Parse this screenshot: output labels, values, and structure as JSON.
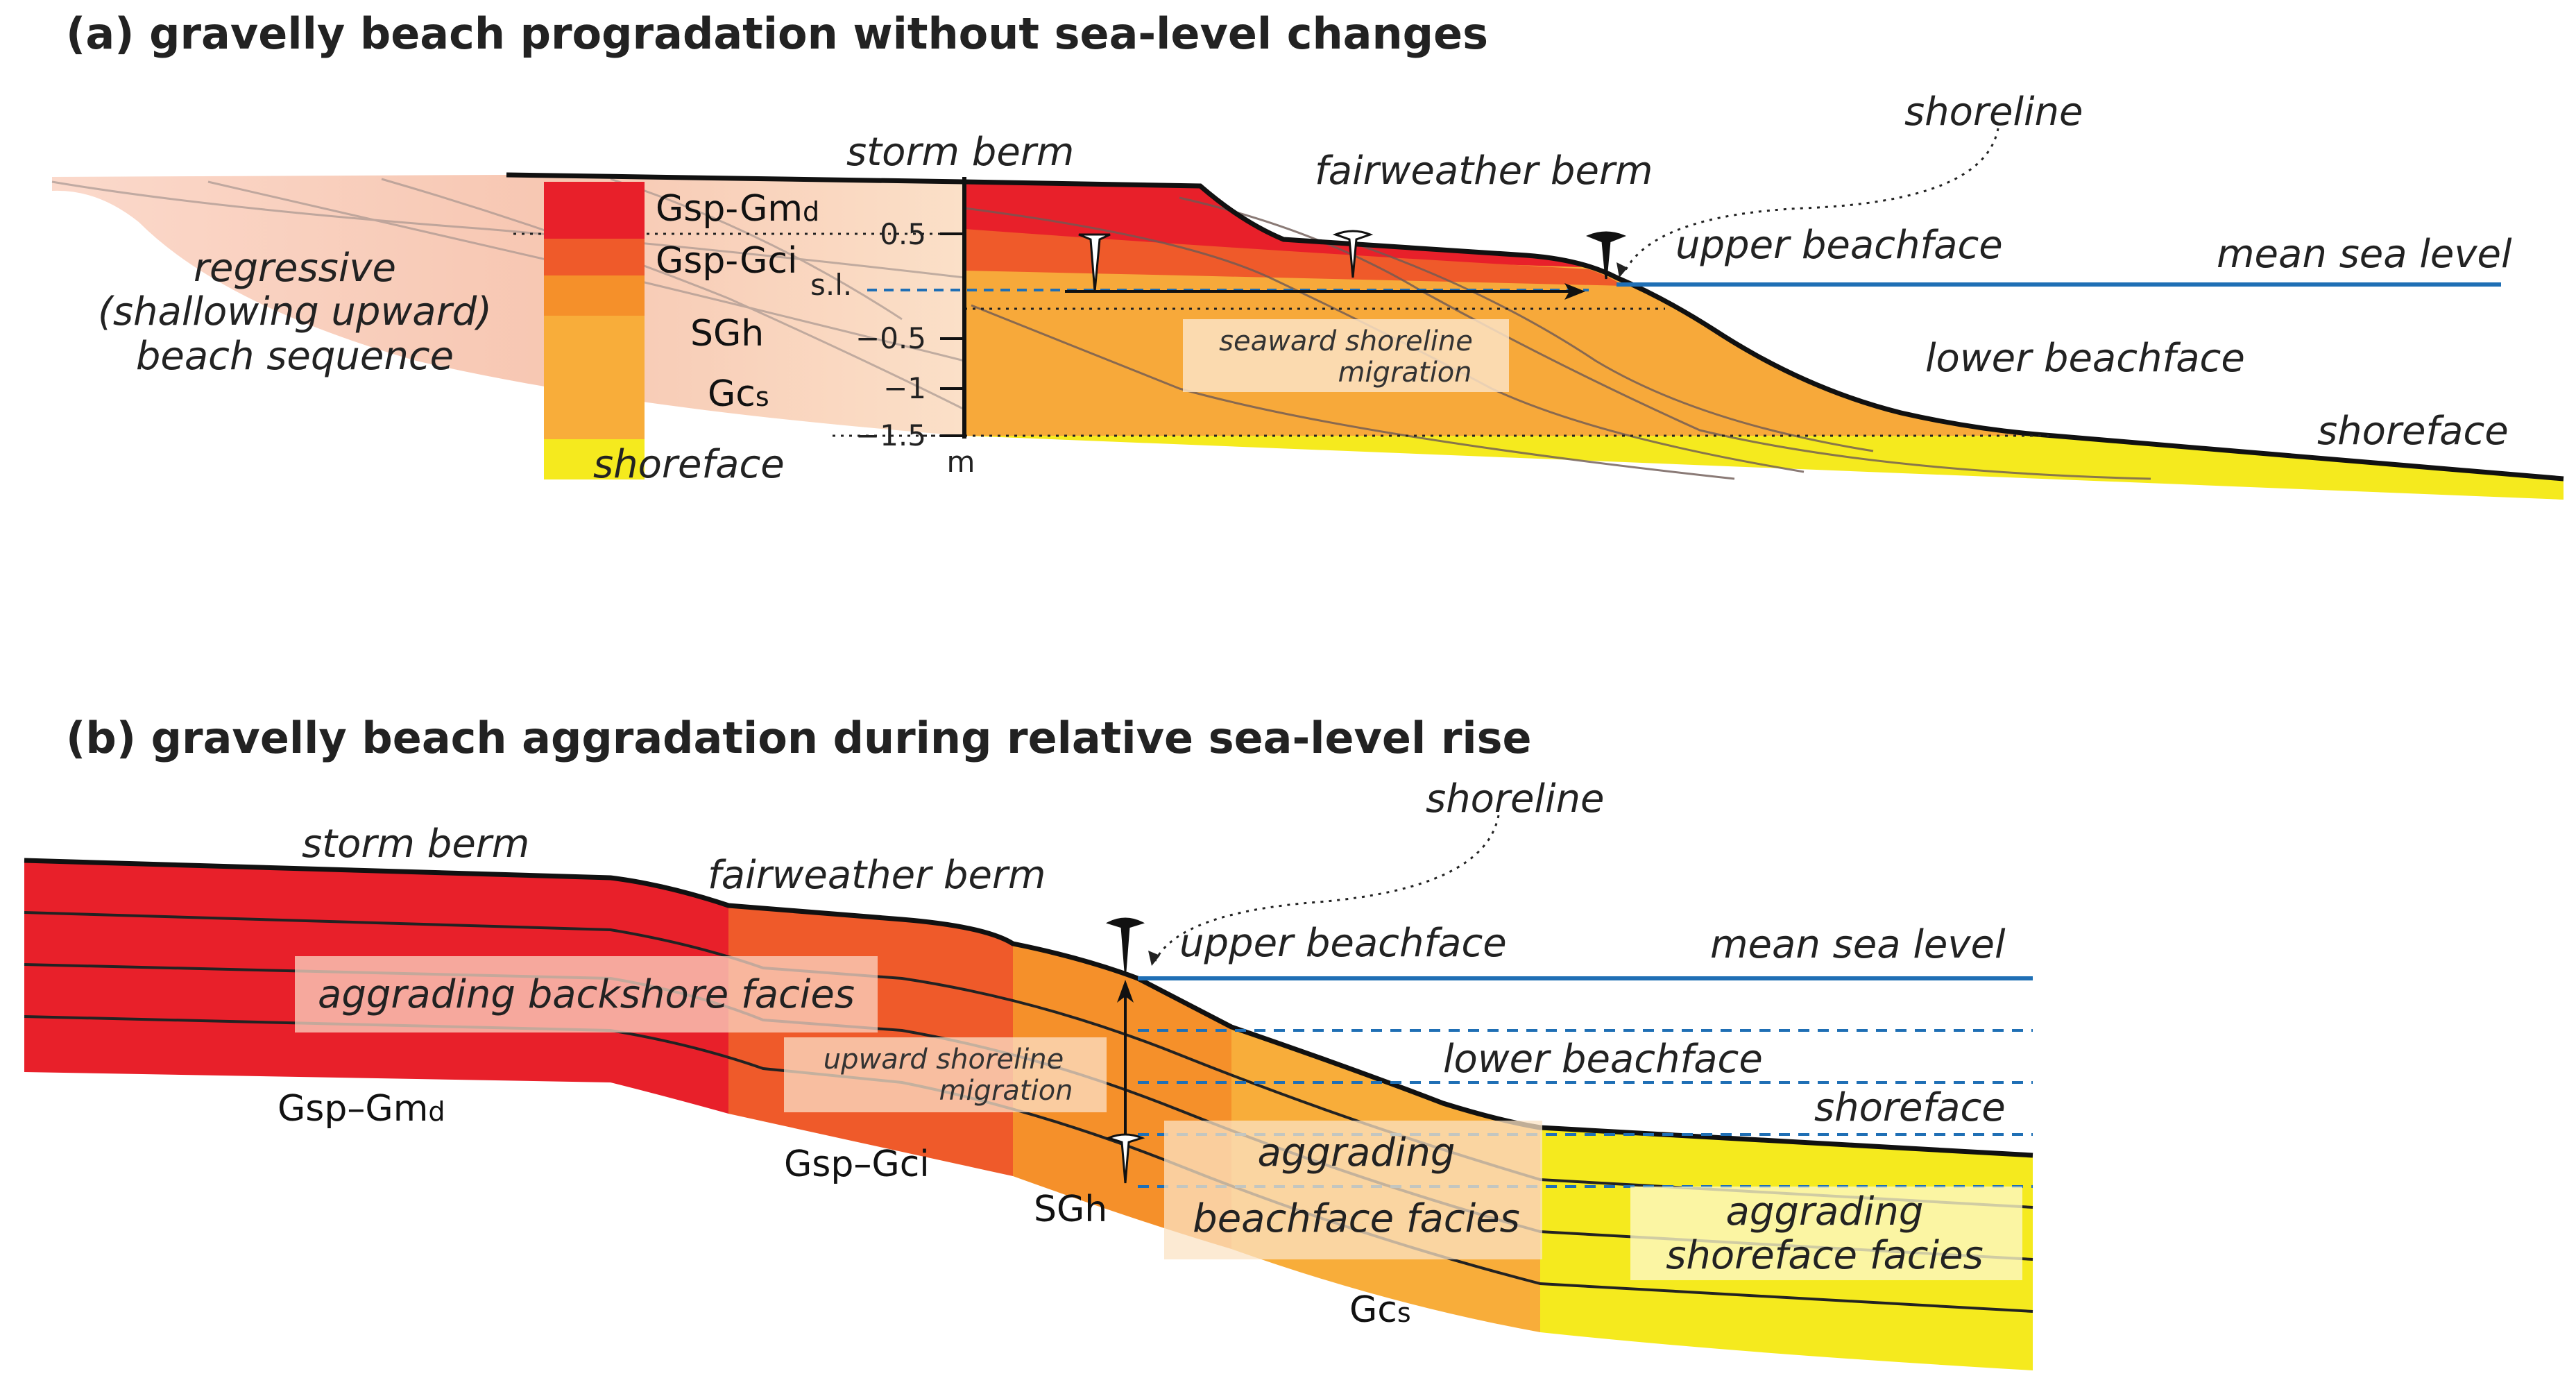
{
  "panel_a": {
    "title": "(a) gravelly beach progradation without sea-level changes",
    "labels": {
      "storm_berm": "storm berm",
      "fairweather_berm": "fairweather berm",
      "shoreline": "shoreline",
      "upper_beachface": "upper beachface",
      "mean_sea_level": "mean sea level",
      "lower_beachface": "lower beachface",
      "shoreface_right": "shoreface",
      "shoreface_column": "shoreface",
      "sequence_line1": "regressive",
      "sequence_line2": "(shallowing upward)",
      "sequence_line3": "beach sequence",
      "migration_line1": "seaward shoreline",
      "migration_line2": "migration",
      "sea_level_marker": "s.l.",
      "scale_unit": "m"
    },
    "facies_codes": {
      "gsp_gmd_main": "Gsp-Gm",
      "gsp_gmd_sub": "d",
      "gsp_gci": "Gsp-Gci",
      "sgh": "SGh",
      "gcs_main": "Gc",
      "gcs_sub": "s"
    },
    "scale_ticks": [
      "0.5",
      "−0.5",
      "−1",
      "−1.5"
    ]
  },
  "panel_b": {
    "title": "(b) gravelly beach aggradation  during relative sea-level rise",
    "labels": {
      "storm_berm": "storm berm",
      "fairweather_berm": "fairweather berm",
      "shoreline": "shoreline",
      "upper_beachface": "upper beachface",
      "mean_sea_level": "mean sea level",
      "lower_beachface": "lower beachface",
      "shoreface": "shoreface",
      "backshore_facies": "aggrading backshore facies",
      "migration_line1": "upward shoreline",
      "migration_line2": "migration",
      "beachface_line1": "aggrading",
      "beachface_line2": "beachface facies",
      "shoreface_line1": "aggrading",
      "shoreface_line2": "shoreface facies"
    },
    "facies_codes": {
      "gsp_gmd_main": "Gsp–Gm",
      "gsp_gmd_sub": "d",
      "gsp_gci": "Gsp–Gci",
      "sgh": "SGh",
      "gcs_main": "Gc",
      "gcs_sub": "s"
    }
  },
  "colors": {
    "backshore_red": "#e8202a",
    "berm_orange_red": "#ef5a2a",
    "beachface_orange": "#f59a2a",
    "lower_orange": "#f8ad3a",
    "shoreface_yellow": "#f5ea1e",
    "sea_level_blue": "#1f6fb5",
    "faded_pink": "#f6c4b0"
  }
}
